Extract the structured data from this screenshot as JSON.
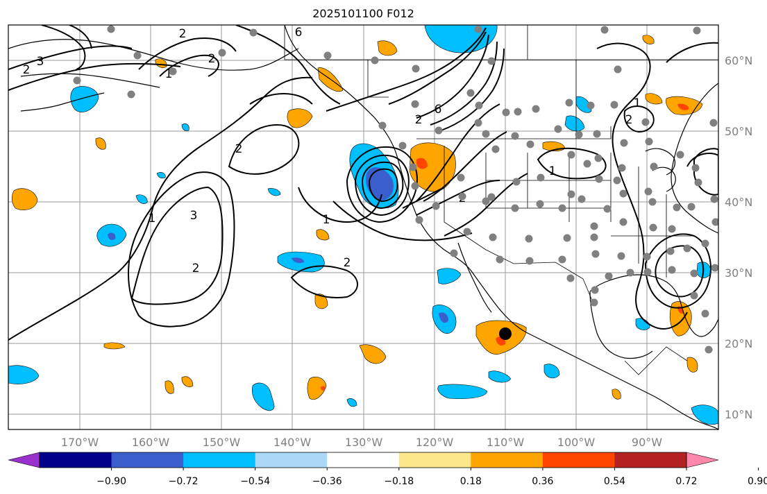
{
  "title": "2025101100 F012",
  "lat_labels": [
    "60°N",
    "50°N",
    "40°N",
    "30°N",
    "20°N",
    "10°N"
  ],
  "lon_labels": [
    "170°W",
    "160°W",
    "150°W",
    "140°W",
    "130°W",
    "120°W",
    "110°W",
    "100°W",
    "90°W"
  ],
  "colorbar": {
    "ticks": [
      "−0.90",
      "−0.72",
      "−0.54",
      "−0.36",
      "−0.18",
      "0.18",
      "0.36",
      "0.54",
      "0.72",
      "0.90"
    ],
    "colors": [
      "#9932cc",
      "#00008b",
      "#3a5fcd",
      "#00bfff",
      "#add8f5",
      "#ffffff",
      "#fce78a",
      "#ffa500",
      "#ff4500",
      "#b22222",
      "#ff88aa"
    ]
  },
  "contour_labels": [
    "2",
    "6",
    "3",
    "2",
    "6",
    "2",
    "2",
    "1",
    "3",
    "2",
    "1",
    "2",
    "2",
    "1",
    "1",
    "2",
    "2",
    "1"
  ],
  "colors": {
    "dot": "#808080",
    "marker": "#000000",
    "grid": "#999999"
  }
}
